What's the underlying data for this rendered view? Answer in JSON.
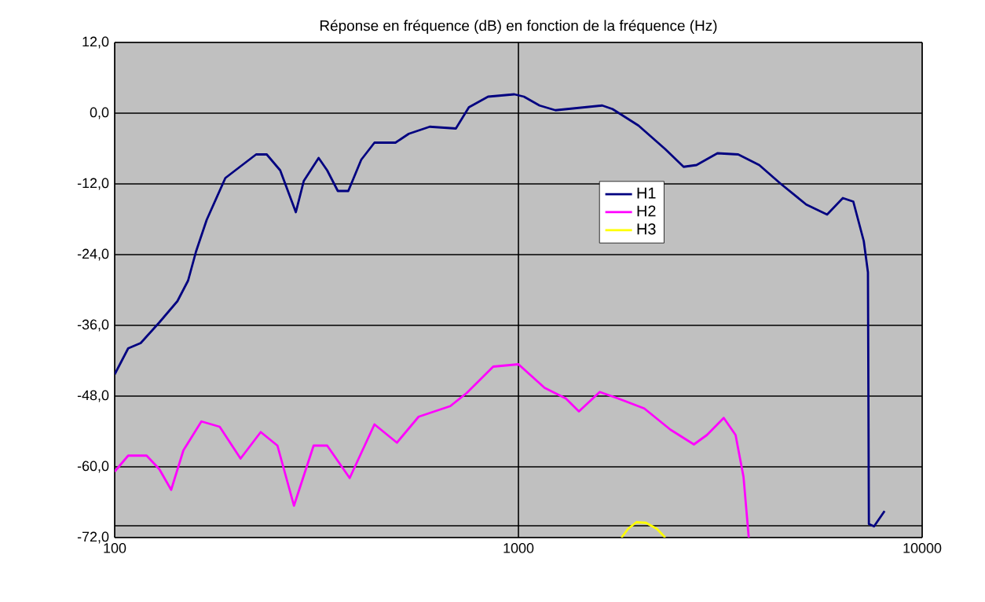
{
  "chart_data": {
    "type": "line",
    "title": "Réponse en fréquence (dB) en fonction de la fréquence (Hz)",
    "log": "x",
    "grid": true,
    "legend": "right",
    "marker": "none",
    "line_style": "solid",
    "xlim": [
      100,
      10000
    ],
    "xticks": [
      100,
      1000,
      10000
    ],
    "ylim": [
      -72,
      12
    ],
    "yticks": [
      {
        "value": 12,
        "label": "12,0"
      },
      {
        "value": 0,
        "label": "0,0"
      },
      {
        "value": -12,
        "label": "-12,0"
      },
      {
        "value": -24,
        "label": "-24,0"
      },
      {
        "value": -36,
        "label": "-36,0"
      },
      {
        "value": -48,
        "label": "-48,0"
      },
      {
        "value": -60,
        "label": "-60,0"
      },
      {
        "value": -72,
        "label": "-72,0"
      }
    ],
    "ref_lines": [
      {
        "axis": "y",
        "value": -70,
        "color": "#000000"
      }
    ],
    "series": [
      {
        "name": "H1",
        "color": "#000080",
        "x": [
          100,
          108,
          116,
          129,
          143,
          152,
          159,
          169,
          188,
          199,
          224,
          238,
          257,
          281,
          294,
          320,
          336,
          357,
          379,
          408,
          440,
          496,
          535,
          603,
          700,
          754,
          841,
          977,
          1032,
          1128,
          1235,
          1613,
          1710,
          1983,
          2310,
          2565,
          2761,
          3111,
          3503,
          3949,
          4449,
          5162,
          5815,
          6361,
          6752,
          7167,
          7340,
          7380,
          7600,
          8070
        ],
        "values": [
          -44.3,
          -39.9,
          -39.0,
          -35.5,
          -31.9,
          -28.4,
          -23.5,
          -18.1,
          -11.0,
          -9.7,
          -7.0,
          -7.0,
          -9.7,
          -16.8,
          -11.5,
          -7.6,
          -9.7,
          -13.2,
          -13.2,
          -7.9,
          -5.0,
          -5.0,
          -3.5,
          -2.3,
          -2.6,
          1.0,
          2.8,
          3.2,
          2.8,
          1.3,
          0.5,
          1.3,
          0.7,
          -2.1,
          -6.1,
          -9.1,
          -8.8,
          -6.8,
          -7.0,
          -8.8,
          -11.9,
          -15.5,
          -17.2,
          -14.4,
          -15.0,
          -21.7,
          -27.0,
          -69.7,
          -70.1,
          -67.5
        ]
      },
      {
        "name": "H2",
        "color": "#ff00ff",
        "x": [
          100,
          108,
          120,
          129,
          138,
          148,
          164,
          182,
          205,
          230,
          253,
          278,
          311,
          336,
          382,
          440,
          500,
          566,
          678,
          744,
          866,
          1000,
          1161,
          1310,
          1412,
          1590,
          1765,
          2050,
          2380,
          2720,
          2930,
          3225,
          3450,
          3610,
          3720
        ],
        "values": [
          -60.8,
          -58.1,
          -58.1,
          -60.4,
          -63.9,
          -57.2,
          -52.3,
          -53.2,
          -58.6,
          -54.1,
          -56.4,
          -66.6,
          -56.4,
          -56.4,
          -61.9,
          -52.8,
          -55.9,
          -51.5,
          -49.7,
          -47.5,
          -43.0,
          -42.6,
          -46.6,
          -48.4,
          -50.6,
          -47.3,
          -48.4,
          -50.1,
          -53.7,
          -56.2,
          -54.6,
          -51.7,
          -54.6,
          -61.7,
          -72
        ]
      },
      {
        "name": "H3",
        "color": "#ffff00",
        "x": [
          1800,
          1870,
          1960,
          2070,
          2200,
          2310
        ],
        "values": [
          -72,
          -70.5,
          -69.4,
          -69.5,
          -70.5,
          -72
        ]
      }
    ]
  }
}
